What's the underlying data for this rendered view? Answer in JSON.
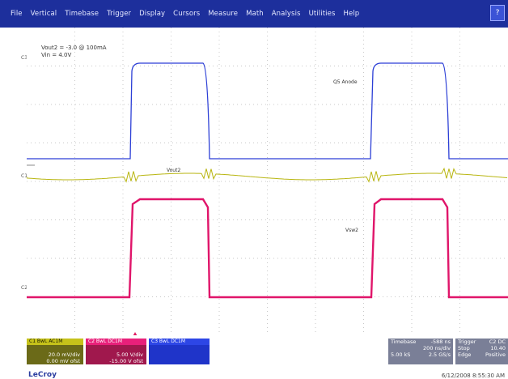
{
  "menu": [
    "File",
    "Vertical",
    "Timebase",
    "Trigger",
    "Display",
    "Cursors",
    "Measure",
    "Math",
    "Analysis",
    "Utilities",
    "Help"
  ],
  "annotation": {
    "line1": "Vout2 = -3.0 @ 100mA",
    "line2": "Vin = 4.0V"
  },
  "trace_labels": {
    "c3": "Q5 Anode",
    "c1": "Vout2",
    "c2": "Vsw2"
  },
  "side_marks": {
    "c3": "C3",
    "c1": "C1",
    "c2": "C2"
  },
  "channels": [
    {
      "id": "C1",
      "head": "C1  BwL  AC1M",
      "v1": "20.0 mV/div",
      "v2": "0.00 mV ofst",
      "color": "#c6c21a"
    },
    {
      "id": "C2",
      "head": "C2  BwL  DC1M",
      "v1": "5.00 V/div",
      "v2": "-15.00 V ofst",
      "color": "#e8207a"
    },
    {
      "id": "C3",
      "head": "C3  BwL  DC1M",
      "v1": "",
      "v2": "",
      "color": "#2d46e6"
    }
  ],
  "timebase": {
    "label": "Timebase",
    "value": "-588 ns",
    "div": "200 ns/div",
    "samples": "5.00 kS",
    "rate": "2.5 GS/s"
  },
  "trigger": {
    "label": "Trigger",
    "src": "C2 DC",
    "mode": "Stop",
    "level": "10.40",
    "type": "Edge",
    "slope": "Positive"
  },
  "brand": "LeCroy",
  "timestamp": "6/12/2008 8:55:30 AM"
}
